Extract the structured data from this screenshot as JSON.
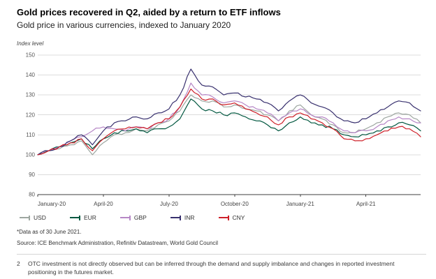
{
  "header": {
    "title": "Gold prices recovered in Q2, aided by a return to ETF inflows",
    "subtitle": "Gold price in various currencies, indexed to January 2020"
  },
  "chart": {
    "y_axis_unit_label": "Index level"
  },
  "chart_data": {
    "type": "line",
    "title": "Gold price in various currencies, indexed to January 2020",
    "ylabel": "Index level",
    "xlabel": "",
    "ylim": [
      80,
      150
    ],
    "y_ticks": [
      80,
      90,
      100,
      110,
      120,
      130,
      140,
      150
    ],
    "x_range": [
      0,
      17.5
    ],
    "x_unit": "months since January 2020",
    "x_ticks": [
      {
        "pos": 0,
        "label": "January-20"
      },
      {
        "pos": 3,
        "label": "April-20"
      },
      {
        "pos": 6,
        "label": "July-20"
      },
      {
        "pos": 9,
        "label": "October-20"
      },
      {
        "pos": 12,
        "label": "January-21"
      },
      {
        "pos": 15,
        "label": "April-21"
      }
    ],
    "grid": "horizontal",
    "legend_position": "bottom",
    "x": [
      0,
      0.5,
      1,
      1.5,
      2,
      2.5,
      3,
      3.5,
      4,
      4.5,
      5,
      5.5,
      6,
      6.5,
      7,
      7.5,
      8,
      8.5,
      9,
      9.5,
      10,
      10.5,
      11,
      11.5,
      12,
      12.5,
      13,
      13.5,
      14,
      14.5,
      15,
      15.5,
      16,
      16.5,
      17,
      17.5
    ],
    "series": [
      {
        "name": "USD",
        "color": "#9da6a0",
        "values": [
          100,
          102,
          103,
          105,
          107,
          100,
          106,
          110,
          111,
          113,
          112,
          115,
          117,
          122,
          130,
          127,
          127,
          124,
          125,
          123,
          122,
          120,
          117,
          122,
          125,
          120,
          118,
          115,
          111,
          111,
          113,
          116,
          119,
          121,
          120,
          116
        ]
      },
      {
        "name": "EUR",
        "color": "#00573f",
        "values": [
          100,
          102,
          104,
          106,
          108,
          103,
          108,
          111,
          112,
          113,
          111,
          113,
          114,
          118,
          128,
          123,
          122,
          120,
          121,
          119,
          117,
          115,
          112,
          116,
          119,
          116,
          115,
          113,
          110,
          109,
          110,
          112,
          114,
          116,
          115,
          112
        ]
      },
      {
        "name": "GBP",
        "color": "#b687c6",
        "values": [
          100,
          102,
          104,
          107,
          109,
          112,
          114,
          113,
          112,
          114,
          113,
          116,
          118,
          124,
          136,
          130,
          129,
          126,
          127,
          125,
          123,
          121,
          117,
          121,
          123,
          120,
          119,
          116,
          112,
          111,
          112,
          114,
          117,
          119,
          118,
          116
        ]
      },
      {
        "name": "INR",
        "color": "#38306e",
        "values": [
          100,
          102,
          104,
          107,
          110,
          105,
          112,
          116,
          117,
          119,
          118,
          121,
          123,
          130,
          143,
          135,
          134,
          130,
          131,
          129,
          128,
          126,
          122,
          127,
          130,
          126,
          124,
          121,
          117,
          116,
          118,
          121,
          124,
          127,
          126,
          122
        ]
      },
      {
        "name": "CNY",
        "color": "#ce2029",
        "values": [
          100,
          102,
          104,
          106,
          108,
          102,
          108,
          112,
          113,
          114,
          113,
          116,
          118,
          124,
          133,
          128,
          128,
          125,
          126,
          123,
          121,
          119,
          115,
          119,
          121,
          118,
          116,
          113,
          108,
          107,
          108,
          110,
          112,
          114,
          113,
          109
        ]
      }
    ],
    "grid_color": "#dcdcdc",
    "axis_color": "#3f3f3f"
  },
  "footnotes": {
    "data_as_of": "*Data as of 30 June 2021.",
    "source": "Source: ICE Benchmark Administration, Refinitiv Datastream, World Gold Council",
    "note2_number": "2",
    "note2_text": "OTC investment is not directly observed but can be inferred through the demand and supply imbalance and changes in reported investment positioning in the futures market."
  }
}
